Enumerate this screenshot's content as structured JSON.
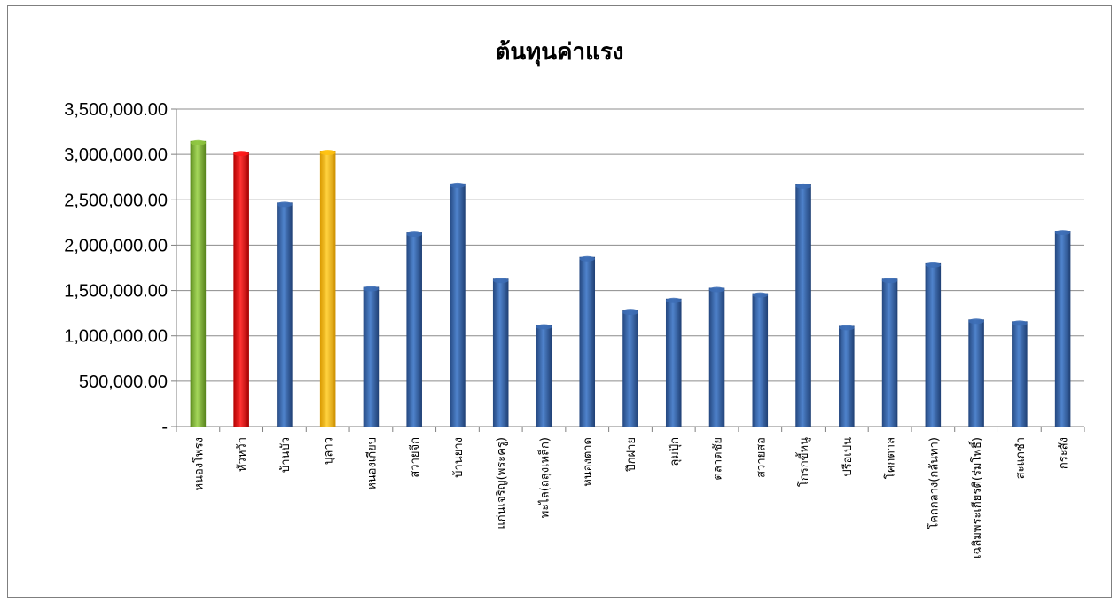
{
  "chart_data": {
    "type": "bar",
    "title": "ต้นทุนค่าแรง",
    "xlabel": "",
    "ylabel": "",
    "ylim": [
      0,
      3500000
    ],
    "yticks": [
      0,
      500000,
      1000000,
      1500000,
      2000000,
      2500000,
      3000000,
      3500000
    ],
    "ytick_labels": [
      "-",
      "500,000.00",
      "1,000,000.00",
      "1,500,000.00",
      "2,000,000.00",
      "2,500,000.00",
      "3,000,000.00",
      "3,500,000.00"
    ],
    "grid": true,
    "legend": "none",
    "categories": [
      "หนองโพรง",
      "หัวหว้า",
      "บ้านบัว",
      "บุลาว",
      "หนองเกียบ",
      "สวายจีก",
      "บ้านยาง",
      "แก่นเจริญ(พระครู)",
      "พะไล(ถลุงเหล็ก)",
      "หนองตาด",
      "ปึกฝาย",
      "ลุมปุ๊ก",
      "ตลาดชัย",
      "สวายสอ",
      "โกรกขี้หนู",
      "ปรือเปน",
      "โคกตาล",
      "โคกกลาง(กลันทา)",
      "เฉลิมพระเกียรติ(ร่มโพธิ์)",
      "สะแกซำ",
      "กระสัง"
    ],
    "values": [
      3150000,
      3030000,
      2470000,
      3040000,
      1540000,
      2140000,
      2680000,
      1630000,
      1120000,
      1870000,
      1280000,
      1410000,
      1530000,
      1470000,
      2670000,
      1110000,
      1630000,
      1800000,
      1180000,
      1160000,
      2160000
    ],
    "bar_colors": [
      "#8ec63f",
      "#ff1a1a",
      "#3d6db5",
      "#ffc20e",
      "#3d6db5",
      "#3d6db5",
      "#3d6db5",
      "#3d6db5",
      "#3d6db5",
      "#3d6db5",
      "#3d6db5",
      "#3d6db5",
      "#3d6db5",
      "#3d6db5",
      "#3d6db5",
      "#3d6db5",
      "#3d6db5",
      "#3d6db5",
      "#3d6db5",
      "#3d6db5",
      "#3d6db5"
    ]
  }
}
